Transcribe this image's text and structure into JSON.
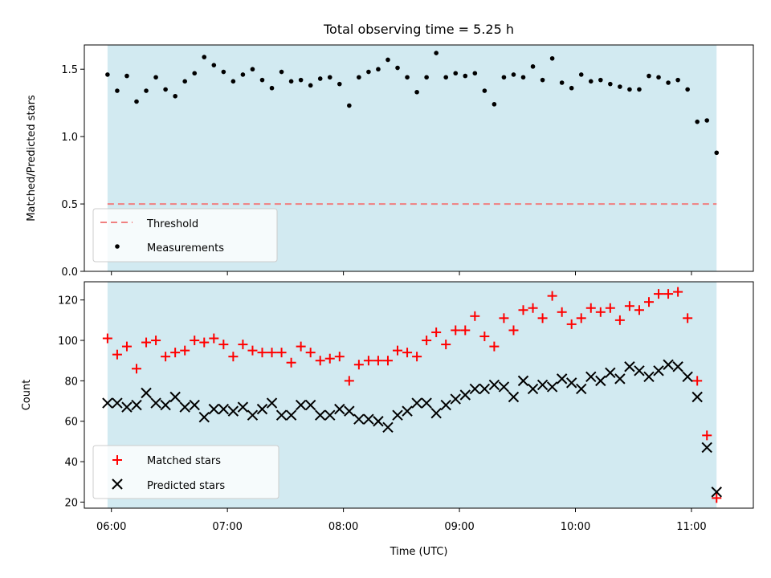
{
  "chart_data": [
    {
      "type": "scatter",
      "title": "Total observing time = 5.25 h",
      "ylabel": "Matched/Predicted stars",
      "xlabel": "",
      "xlim": [
        "05:46",
        "11:32"
      ],
      "ylim": [
        0,
        1.68
      ],
      "yticks": [
        "0.0",
        "0.5",
        "1.0",
        "1.5"
      ],
      "shaded_span": [
        "05:58",
        "11:13"
      ],
      "shaded_color": "#add8e6",
      "threshold": {
        "name": "Threshold",
        "value": 0.5,
        "color": "#f08080",
        "style": "dashed"
      },
      "legend_position": "lower-left",
      "series": [
        {
          "name": "Measurements",
          "color": "#000000",
          "marker": "dot",
          "x": [
            "05:58",
            "06:03",
            "06:08",
            "06:13",
            "06:18",
            "06:23",
            "06:28",
            "06:33",
            "06:38",
            "06:43",
            "06:48",
            "06:53",
            "06:58",
            "07:03",
            "07:08",
            "07:13",
            "07:18",
            "07:23",
            "07:28",
            "07:33",
            "07:38",
            "07:43",
            "07:48",
            "07:53",
            "07:58",
            "08:03",
            "08:08",
            "08:13",
            "08:18",
            "08:23",
            "08:28",
            "08:33",
            "08:38",
            "08:43",
            "08:48",
            "08:53",
            "08:58",
            "09:03",
            "09:08",
            "09:13",
            "09:18",
            "09:23",
            "09:28",
            "09:33",
            "09:38",
            "09:43",
            "09:48",
            "09:53",
            "09:58",
            "10:03",
            "10:08",
            "10:13",
            "10:18",
            "10:23",
            "10:28",
            "10:33",
            "10:38",
            "10:43",
            "10:48",
            "10:53",
            "10:58",
            "11:03",
            "11:08",
            "11:13"
          ],
          "y": [
            1.46,
            1.34,
            1.45,
            1.26,
            1.34,
            1.44,
            1.35,
            1.3,
            1.41,
            1.47,
            1.59,
            1.53,
            1.48,
            1.41,
            1.46,
            1.5,
            1.42,
            1.36,
            1.48,
            1.41,
            1.42,
            1.38,
            1.43,
            1.44,
            1.39,
            1.23,
            1.44,
            1.48,
            1.5,
            1.57,
            1.51,
            1.44,
            1.33,
            1.44,
            1.62,
            1.44,
            1.47,
            1.45,
            1.47,
            1.34,
            1.24,
            1.44,
            1.46,
            1.44,
            1.52,
            1.42,
            1.58,
            1.4,
            1.36,
            1.46,
            1.41,
            1.42,
            1.39,
            1.37,
            1.35,
            1.35,
            1.45,
            1.44,
            1.4,
            1.42,
            1.35,
            1.11,
            1.12,
            0.88
          ]
        }
      ]
    },
    {
      "type": "scatter",
      "title": "",
      "ylabel": "Count",
      "xlabel": "Time (UTC)",
      "xlim": [
        "05:46",
        "11:32"
      ],
      "ylim": [
        17,
        129
      ],
      "yticks": [
        "20",
        "40",
        "60",
        "80",
        "100",
        "120"
      ],
      "xticks": [
        "06:00",
        "07:00",
        "08:00",
        "09:00",
        "10:00",
        "11:00"
      ],
      "shaded_span": [
        "05:58",
        "11:13"
      ],
      "shaded_color": "#add8e6",
      "legend_position": "lower-left",
      "x": [
        "05:58",
        "06:03",
        "06:08",
        "06:13",
        "06:18",
        "06:23",
        "06:28",
        "06:33",
        "06:38",
        "06:43",
        "06:48",
        "06:53",
        "06:58",
        "07:03",
        "07:08",
        "07:13",
        "07:18",
        "07:23",
        "07:28",
        "07:33",
        "07:38",
        "07:43",
        "07:48",
        "07:53",
        "07:58",
        "08:03",
        "08:08",
        "08:13",
        "08:18",
        "08:23",
        "08:28",
        "08:33",
        "08:38",
        "08:43",
        "08:48",
        "08:53",
        "08:58",
        "09:03",
        "09:08",
        "09:13",
        "09:18",
        "09:23",
        "09:28",
        "09:33",
        "09:38",
        "09:43",
        "09:48",
        "09:53",
        "09:58",
        "10:03",
        "10:08",
        "10:13",
        "10:18",
        "10:23",
        "10:28",
        "10:33",
        "10:38",
        "10:43",
        "10:48",
        "10:53",
        "10:58",
        "11:03",
        "11:08",
        "11:13"
      ],
      "series": [
        {
          "name": "Matched stars",
          "color": "#ff0000",
          "marker": "plus",
          "values": [
            101,
            93,
            97,
            86,
            99,
            100,
            92,
            94,
            95,
            100,
            99,
            101,
            98,
            92,
            98,
            95,
            94,
            94,
            94,
            89,
            97,
            94,
            90,
            91,
            92,
            80,
            88,
            90,
            90,
            90,
            95,
            94,
            92,
            100,
            104,
            98,
            105,
            105,
            112,
            102,
            97,
            111,
            105,
            115,
            116,
            111,
            122,
            114,
            108,
            111,
            116,
            114,
            116,
            110,
            117,
            115,
            119,
            123,
            123,
            124,
            111,
            80,
            53,
            22
          ]
        },
        {
          "name": "Predicted stars",
          "color": "#000000",
          "marker": "x",
          "values": [
            69,
            69,
            67,
            68,
            74,
            69,
            68,
            72,
            67,
            68,
            62,
            66,
            66,
            65,
            67,
            63,
            66,
            69,
            63,
            63,
            68,
            68,
            63,
            63,
            66,
            65,
            61,
            61,
            60,
            57,
            63,
            65,
            69,
            69,
            64,
            68,
            71,
            73,
            76,
            76,
            78,
            77,
            72,
            80,
            76,
            78,
            77,
            81,
            79,
            76,
            82,
            80,
            84,
            81,
            87,
            85,
            82,
            85,
            88,
            87,
            82,
            72,
            47,
            25
          ]
        }
      ]
    }
  ]
}
